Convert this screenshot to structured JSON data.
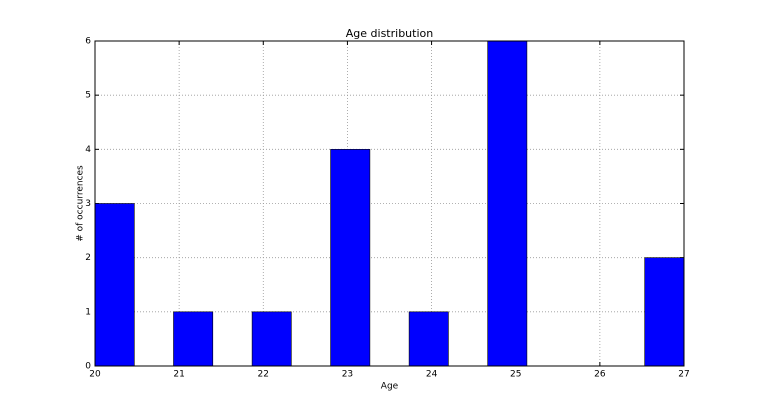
{
  "chart_data": {
    "type": "histogram",
    "title": "Age distribution",
    "x_label": "Age",
    "y_label": "# of occurrences",
    "bins": [
      20,
      20.467,
      20.933,
      21.4,
      21.867,
      22.333,
      22.8,
      23.267,
      23.733,
      24.2,
      24.667,
      25.133,
      25.6,
      26.067,
      26.533,
      27
    ],
    "counts": [
      3,
      0,
      1,
      0,
      1,
      0,
      4,
      0,
      1,
      0,
      6,
      0,
      0,
      0,
      2
    ],
    "color": "#0000ff",
    "xlim": [
      20,
      27
    ],
    "xticks": [
      20,
      21,
      22,
      23,
      24,
      25,
      26,
      27
    ],
    "ylim": [
      0,
      6
    ],
    "yticks": [
      0,
      1,
      2,
      3,
      4,
      5,
      6
    ],
    "grid": true
  }
}
